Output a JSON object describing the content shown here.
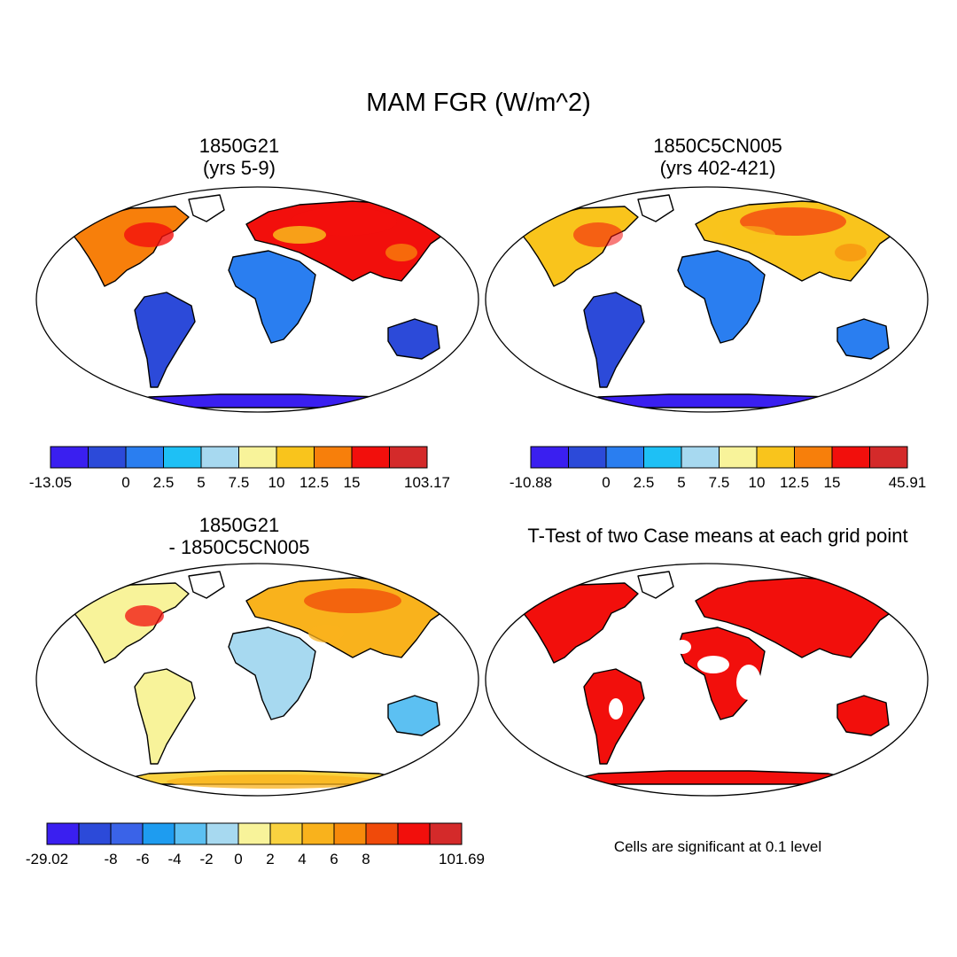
{
  "title": "MAM FGR (W/m^2)",
  "panels": [
    {
      "title_line1": "1850G21",
      "title_line2": "(yrs 5-9)",
      "map_type": "field",
      "colorbar": {
        "colors": [
          "#3a1ff0",
          "#2c4ad9",
          "#2a7ef0",
          "#1ec0f5",
          "#a7d9f0",
          "#f8f39a",
          "#f9c41c",
          "#f77f0b",
          "#f20f0c",
          "#d42a2a"
        ],
        "labels": [
          "-13.05",
          "0",
          "2.5",
          "5",
          "7.5",
          "10",
          "12.5",
          "15",
          "103.17"
        ],
        "label_boundaries": [
          0,
          2,
          3,
          4,
          5,
          6,
          7,
          8,
          10
        ]
      }
    },
    {
      "title_line1": "1850C5CN005",
      "title_line2": "(yrs 402-421)",
      "map_type": "field",
      "colorbar": {
        "colors": [
          "#3a1ff0",
          "#2c4ad9",
          "#2a7ef0",
          "#1ec0f5",
          "#a7d9f0",
          "#f8f39a",
          "#f9c41c",
          "#f77f0b",
          "#f20f0c",
          "#d42a2a"
        ],
        "labels": [
          "-10.88",
          "0",
          "2.5",
          "5",
          "7.5",
          "10",
          "12.5",
          "15",
          "45.91"
        ],
        "label_boundaries": [
          0,
          2,
          3,
          4,
          5,
          6,
          7,
          8,
          10
        ]
      }
    },
    {
      "title_line1": "1850G21",
      "title_line2": "- 1850C5CN005",
      "map_type": "difference",
      "colorbar": {
        "colors": [
          "#3a1ff0",
          "#2c4ad9",
          "#3a63e8",
          "#1e9cf0",
          "#5cc0f2",
          "#a7d9f0",
          "#f8f39a",
          "#f9d240",
          "#f9b21c",
          "#f78a0b",
          "#f04a0a",
          "#f20f0c",
          "#d42a2a"
        ],
        "labels": [
          "-29.02",
          "-8",
          "-6",
          "-4",
          "-2",
          "0",
          "2",
          "4",
          "6",
          "8",
          "101.69"
        ],
        "label_boundaries": [
          0,
          2,
          3,
          4,
          5,
          6,
          7,
          8,
          9,
          10,
          13
        ]
      }
    },
    {
      "title_line1": "T-Test of two Case means at each grid point",
      "map_type": "significance",
      "note": "Cells are significant at 0.1 level"
    }
  ],
  "chart_data": [
    {
      "type": "heatmap",
      "title": "1850G21 (yrs 5-9)",
      "variable": "MAM FGR (W/m^2)",
      "min": -13.05,
      "max": 103.17,
      "levels": [
        0,
        2.5,
        5,
        7.5,
        10,
        12.5,
        15
      ]
    },
    {
      "type": "heatmap",
      "title": "1850C5CN005 (yrs 402-421)",
      "variable": "MAM FGR (W/m^2)",
      "min": -10.88,
      "max": 45.91,
      "levels": [
        0,
        2.5,
        5,
        7.5,
        10,
        12.5,
        15
      ]
    },
    {
      "type": "heatmap",
      "title": "1850G21 - 1850C5CN005",
      "variable": "MAM FGR (W/m^2)",
      "min": -29.02,
      "max": 101.69,
      "levels": [
        -8,
        -6,
        -4,
        -2,
        0,
        2,
        4,
        6,
        8
      ]
    },
    {
      "type": "heatmap",
      "title": "T-Test of two Case means at each grid point",
      "significance_level": 0.1
    }
  ]
}
